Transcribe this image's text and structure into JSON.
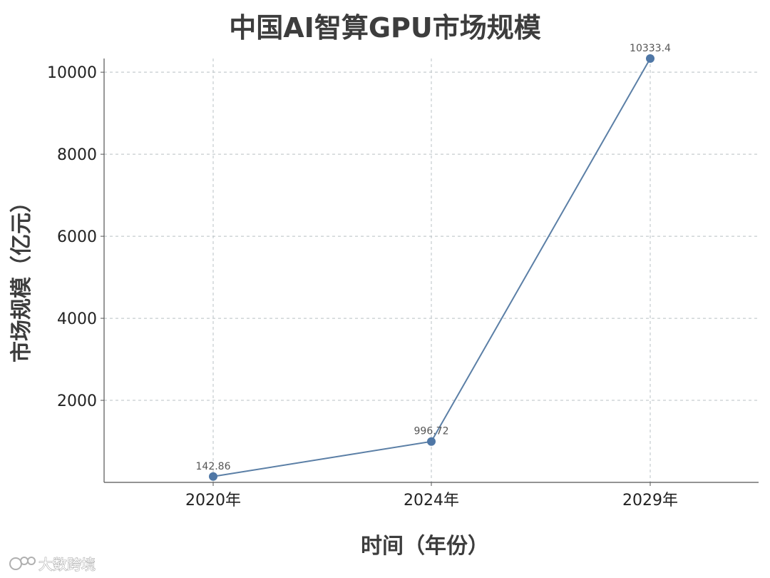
{
  "chart_data": {
    "type": "line",
    "title": "中国AI智算GPU市场规模",
    "xlabel": "时间（年份）",
    "ylabel": "市场规模（亿元）",
    "categories": [
      "2020年",
      "2024年",
      "2029年"
    ],
    "series": [
      {
        "values": [
          142.86,
          996.72,
          10333.4
        ],
        "value_labels": [
          "142.86",
          "996.72",
          "10333.4"
        ]
      }
    ],
    "yticks": [
      2000,
      4000,
      6000,
      8000,
      10000
    ],
    "ylim": [
      0,
      10333.4
    ],
    "grid": true,
    "line_color": "#5b7fa6",
    "marker_color": "#4f77a6"
  },
  "watermark": {
    "text": "大数跨境"
  }
}
